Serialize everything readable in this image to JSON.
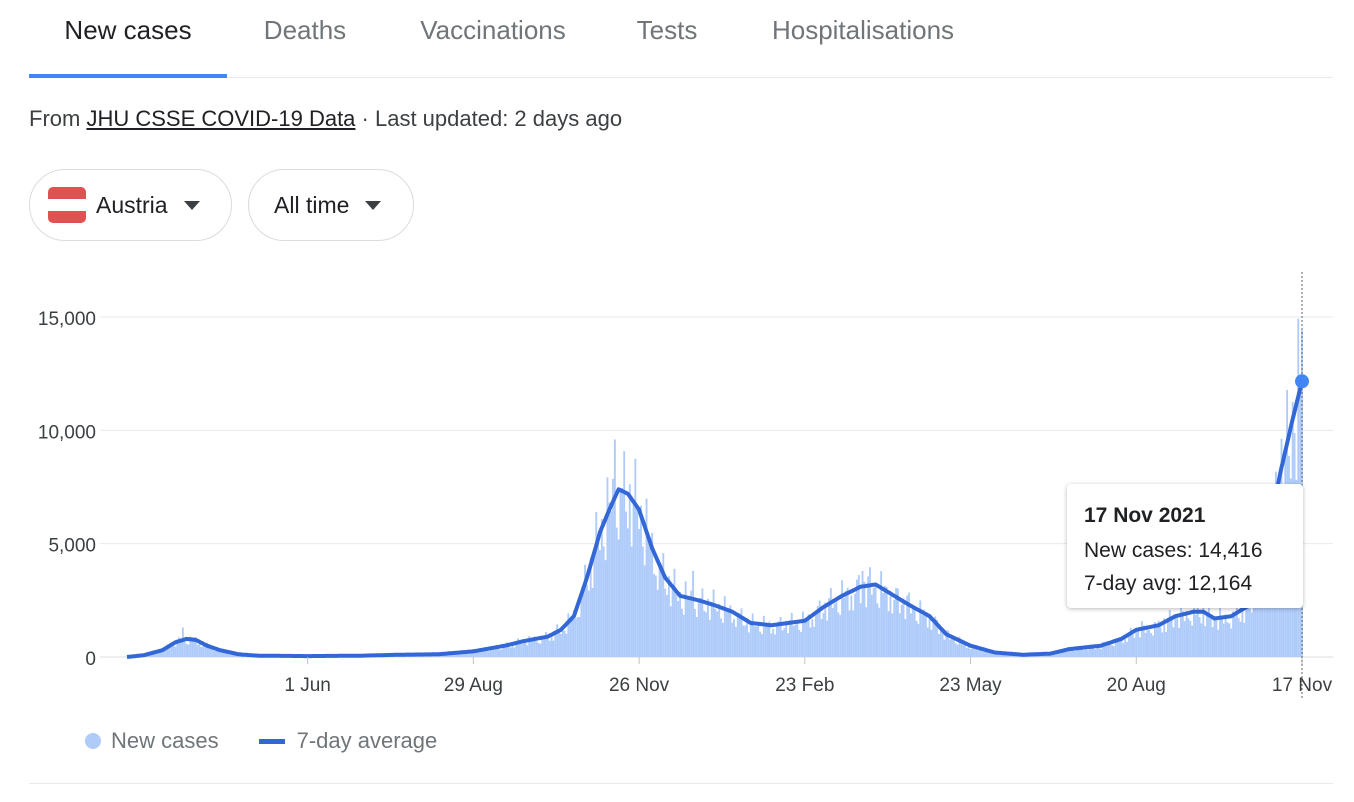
{
  "tabs": [
    {
      "label": "New cases",
      "active": true
    },
    {
      "label": "Deaths",
      "active": false
    },
    {
      "label": "Vaccinations",
      "active": false
    },
    {
      "label": "Tests",
      "active": false
    },
    {
      "label": "Hospitalisations",
      "active": false
    }
  ],
  "source": {
    "prefix": "From",
    "link_text": "JHU CSSE COVID-19 Data",
    "updated": "· Last updated: 2 days ago"
  },
  "filters": {
    "country": "Austria",
    "range": "All time",
    "flag_colors": [
      "#e05252",
      "#ffffff",
      "#e05252"
    ]
  },
  "legend": {
    "new_cases": "New cases",
    "avg": "7-day average"
  },
  "tooltip": {
    "date": "17 Nov 2021",
    "new_cases": "New cases: 14,416",
    "avg": "7-day avg: 12,164"
  },
  "colors": {
    "bars": "#aecbfa",
    "line": "#3367d6",
    "accent": "#4285f4",
    "grid": "#e8eaed"
  },
  "chart_data": {
    "type": "bar",
    "title": "",
    "xlabel": "",
    "ylabel": "",
    "ylim": [
      0,
      16500
    ],
    "y_ticks": [
      0,
      5000,
      10000,
      15000
    ],
    "y_tick_labels": [
      "0",
      "5,000",
      "10,000",
      "15,000"
    ],
    "x_range": [
      "2020-02-25",
      "2021-11-17"
    ],
    "x_ticks": [
      {
        "date": "2020-06-01",
        "label": "1 Jun"
      },
      {
        "date": "2020-08-29",
        "label": "29 Aug"
      },
      {
        "date": "2020-11-26",
        "label": "26 Nov"
      },
      {
        "date": "2021-02-23",
        "label": "23 Feb"
      },
      {
        "date": "2021-05-23",
        "label": "23 May"
      },
      {
        "date": "2021-08-20",
        "label": "20 Aug"
      },
      {
        "date": "2021-11-17",
        "label": "17 Nov"
      }
    ],
    "series": [
      {
        "name": "7-day average",
        "type": "line",
        "points": [
          [
            "2020-02-25",
            0
          ],
          [
            "2020-03-05",
            80
          ],
          [
            "2020-03-15",
            300
          ],
          [
            "2020-03-22",
            650
          ],
          [
            "2020-03-28",
            800
          ],
          [
            "2020-04-02",
            750
          ],
          [
            "2020-04-08",
            500
          ],
          [
            "2020-04-15",
            300
          ],
          [
            "2020-04-25",
            120
          ],
          [
            "2020-05-05",
            60
          ],
          [
            "2020-06-01",
            40
          ],
          [
            "2020-07-01",
            60
          ],
          [
            "2020-07-20",
            100
          ],
          [
            "2020-08-10",
            120
          ],
          [
            "2020-08-29",
            250
          ],
          [
            "2020-09-15",
            500
          ],
          [
            "2020-09-25",
            700
          ],
          [
            "2020-10-08",
            900
          ],
          [
            "2020-10-15",
            1200
          ],
          [
            "2020-10-22",
            1800
          ],
          [
            "2020-10-29",
            3500
          ],
          [
            "2020-11-05",
            5500
          ],
          [
            "2020-11-10",
            6500
          ],
          [
            "2020-11-15",
            7400
          ],
          [
            "2020-11-20",
            7200
          ],
          [
            "2020-11-26",
            6500
          ],
          [
            "2020-12-03",
            4800
          ],
          [
            "2020-12-10",
            3500
          ],
          [
            "2020-12-18",
            2700
          ],
          [
            "2020-12-28",
            2500
          ],
          [
            "2021-01-05",
            2300
          ],
          [
            "2021-01-15",
            2000
          ],
          [
            "2021-01-25",
            1500
          ],
          [
            "2021-02-05",
            1400
          ],
          [
            "2021-02-23",
            1600
          ],
          [
            "2021-03-05",
            2200
          ],
          [
            "2021-03-15",
            2700
          ],
          [
            "2021-03-25",
            3100
          ],
          [
            "2021-04-02",
            3200
          ],
          [
            "2021-04-10",
            2800
          ],
          [
            "2021-04-20",
            2300
          ],
          [
            "2021-05-01",
            1800
          ],
          [
            "2021-05-10",
            1000
          ],
          [
            "2021-05-23",
            500
          ],
          [
            "2021-06-05",
            200
          ],
          [
            "2021-06-20",
            100
          ],
          [
            "2021-07-05",
            150
          ],
          [
            "2021-07-15",
            350
          ],
          [
            "2021-08-01",
            500
          ],
          [
            "2021-08-12",
            800
          ],
          [
            "2021-08-20",
            1200
          ],
          [
            "2021-09-01",
            1400
          ],
          [
            "2021-09-10",
            1800
          ],
          [
            "2021-09-20",
            2000
          ],
          [
            "2021-09-25",
            2000
          ],
          [
            "2021-10-01",
            1700
          ],
          [
            "2021-10-10",
            1800
          ],
          [
            "2021-10-20",
            2300
          ],
          [
            "2021-10-28",
            4500
          ],
          [
            "2021-11-05",
            8000
          ],
          [
            "2021-11-12",
            10500
          ],
          [
            "2021-11-17",
            12164
          ]
        ]
      },
      {
        "name": "New cases",
        "type": "bar",
        "peaks": [
          [
            "2020-03-26",
            1300
          ],
          [
            "2020-11-13",
            9600
          ],
          [
            "2020-12-25",
            3800
          ],
          [
            "2021-03-26",
            3800
          ],
          [
            "2021-11-17",
            14416
          ]
        ]
      }
    ],
    "highlight": {
      "date": "2021-11-17",
      "new_cases": 14416,
      "avg": 12164
    },
    "legend_position": "bottom-left",
    "grid": true
  }
}
